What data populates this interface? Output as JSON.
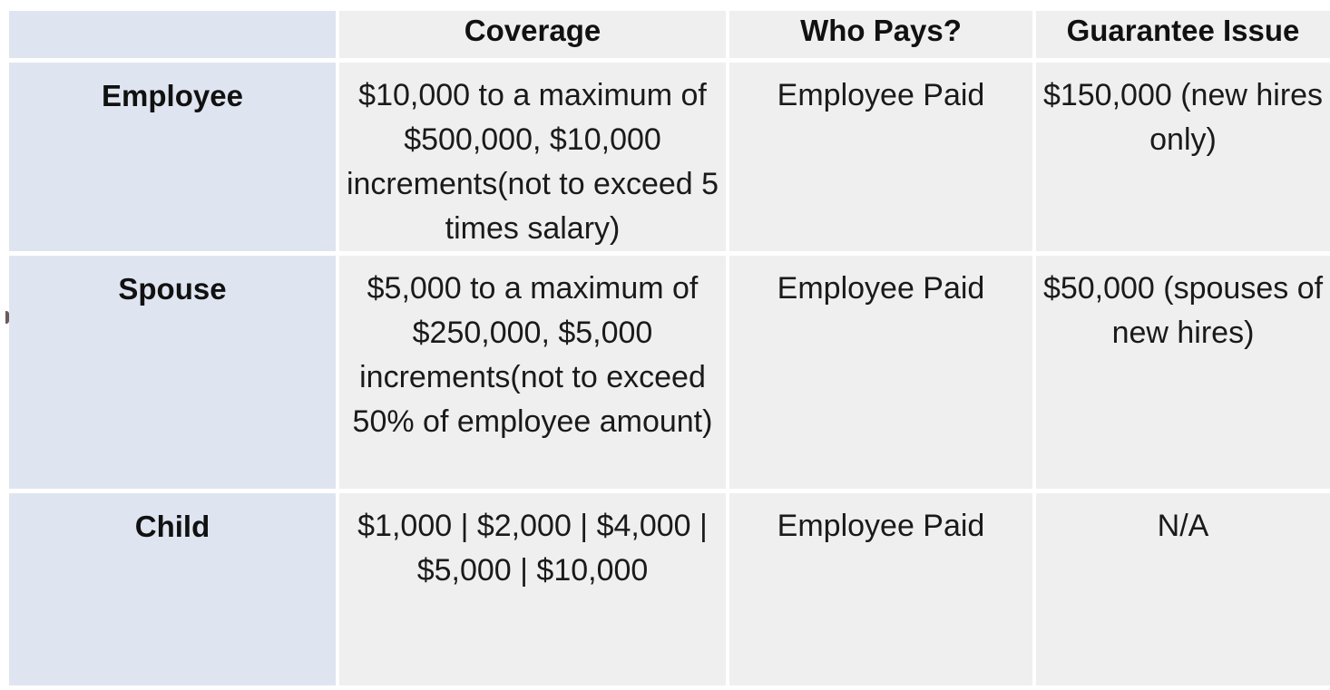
{
  "table": {
    "headers": {
      "row_label": "",
      "coverage": "Coverage",
      "who_pays": "Who Pays?",
      "guarantee_issue": "Guarantee Issue"
    },
    "rows": [
      {
        "label": "Employee",
        "coverage": "$10,000 to a maximum of $500,000, $10,000 increments(not to exceed 5 times salary)",
        "who_pays": "Employee Paid",
        "guarantee_issue": "$150,000 (new hires only)"
      },
      {
        "label": "Spouse",
        "coverage": "$5,000 to a maximum of $250,000, $5,000 increments(not to exceed 50% of employee amount)",
        "who_pays": "Employee Paid",
        "guarantee_issue": "$50,000 (spouses of new hires)"
      },
      {
        "label": "Child",
        "coverage": "$1,000 | $2,000 | $4,000 | $5,000 | $10,000",
        "who_pays": "Employee Paid",
        "guarantee_issue": "N/A"
      }
    ]
  }
}
